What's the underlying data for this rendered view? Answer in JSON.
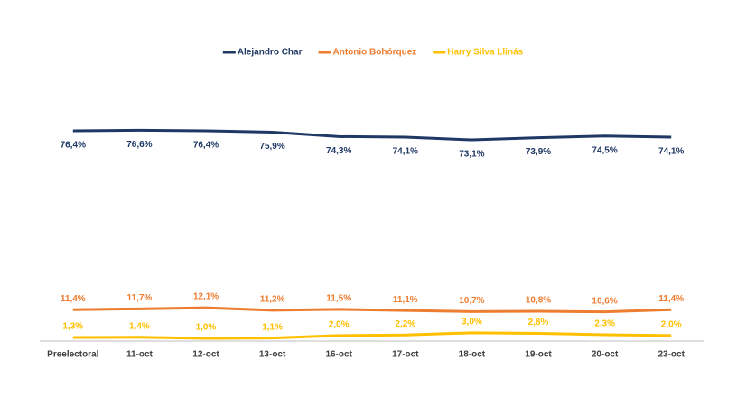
{
  "chart_data": {
    "type": "line",
    "categories": [
      "Preelectoral",
      "11-oct",
      "12-oct",
      "13-oct",
      "16-oct",
      "17-oct",
      "18-oct",
      "19-oct",
      "20-oct",
      "23-oct"
    ],
    "ylim": [
      0,
      100
    ],
    "series": [
      {
        "name": "Alejandro Char",
        "color": "#1f3864",
        "values": [
          76.4,
          76.6,
          76.4,
          75.9,
          74.3,
          74.1,
          73.1,
          73.9,
          74.5,
          74.1
        ],
        "value_labels": [
          "76,4%",
          "76,6%",
          "76,4%",
          "75,9%",
          "74,3%",
          "74,1%",
          "73,1%",
          "73,9%",
          "74,5%",
          "74,1%"
        ]
      },
      {
        "name": "Antonio Bohórquez",
        "color": "#ed7d31",
        "values": [
          11.4,
          11.7,
          12.1,
          11.2,
          11.5,
          11.1,
          10.7,
          10.8,
          10.6,
          11.4
        ],
        "value_labels": [
          "11,4%",
          "11,7%",
          "12,1%",
          "11,2%",
          "11,5%",
          "11,1%",
          "10,7%",
          "10,8%",
          "10,6%",
          "11,4%"
        ]
      },
      {
        "name": "Harry Silva Llinás",
        "color": "#ffc000",
        "values": [
          1.3,
          1.4,
          1.0,
          1.1,
          2.0,
          2.2,
          3.0,
          2.8,
          2.3,
          2.0
        ],
        "value_labels": [
          "1,3%",
          "1,4%",
          "1,0%",
          "1,1%",
          "2,0%",
          "2,2%",
          "3,0%",
          "2,8%",
          "2,3%",
          "2,0%"
        ]
      }
    ]
  }
}
